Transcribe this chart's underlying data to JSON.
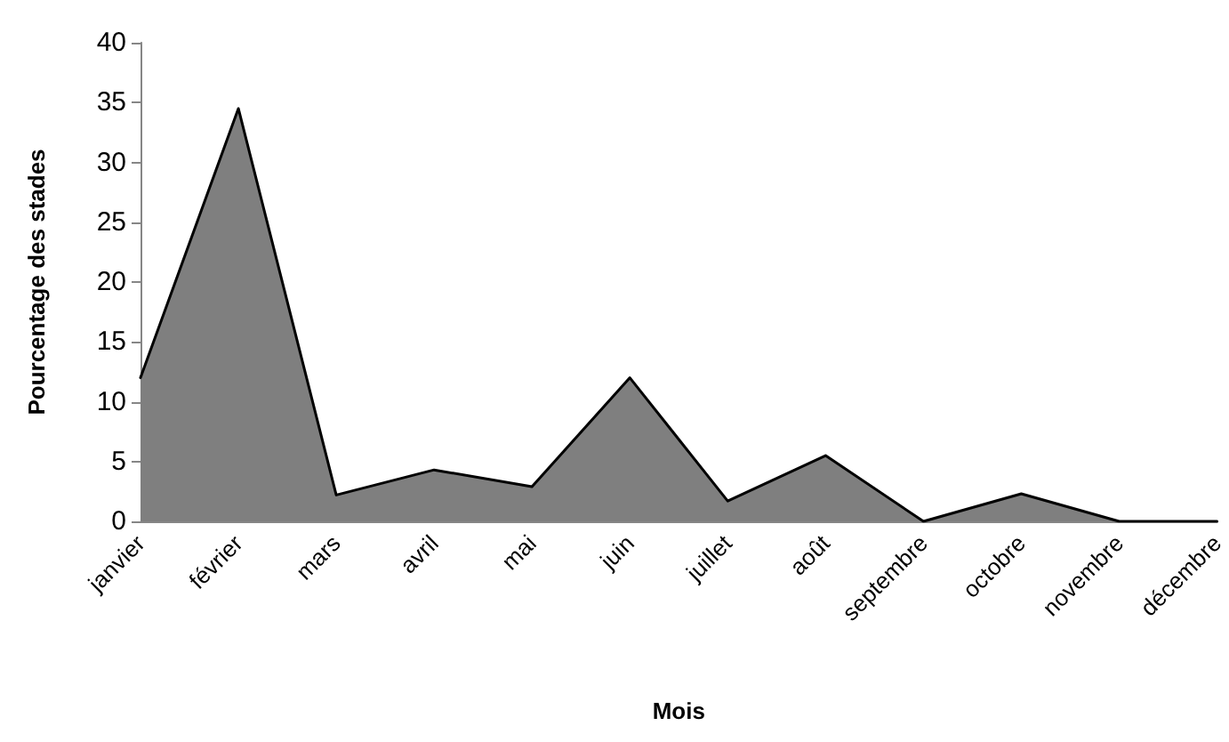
{
  "chart_data": {
    "type": "area",
    "xlabel": "Mois",
    "ylabel": "Pourcentage des stades",
    "categories": [
      "janvier",
      "février",
      "mars",
      "avril",
      "mai",
      "juin",
      "juillet",
      "août",
      "septembre",
      "octobre",
      "novembre",
      "décembre"
    ],
    "series": [
      {
        "color": "#7f7f7f",
        "values": [
          12,
          34.5,
          2.2,
          4.3,
          2.9,
          12,
          1.7,
          5.5,
          0,
          2.3,
          0,
          0
        ]
      }
    ],
    "ylim": [
      0,
      40
    ],
    "yticks": [
      0,
      5,
      10,
      15,
      20,
      25,
      30,
      35,
      40
    ],
    "grid": false,
    "marker": "none",
    "line_style": "solid"
  }
}
